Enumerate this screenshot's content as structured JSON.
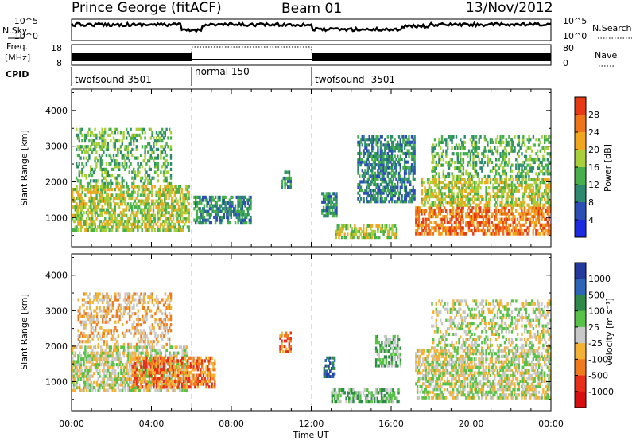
{
  "header": {
    "station": "Prince George (fitACF)",
    "beam": "Beam 01",
    "date": "13/Nov/2012"
  },
  "strips": {
    "nsky_label": "N.Sky",
    "nsky_ticks": [
      "10^5",
      "10^0"
    ],
    "nsearch_label": "N.Search",
    "nsearch_ticks": [
      "10^5",
      "10^0"
    ],
    "freq_label_1": "Freq.",
    "freq_label_2": "[MHz]",
    "freq_ticks": [
      "18",
      "8"
    ],
    "nave_label": "Nave",
    "nave_ticks": [
      "80",
      "0"
    ],
    "cpid_label": "CPID",
    "cpid_segments": [
      {
        "label": "twofsound 3501",
        "start": 0,
        "end": 6
      },
      {
        "label": "normal 150",
        "start": 6,
        "end": 12
      },
      {
        "label": "twofsound -3501",
        "start": 12,
        "end": 24
      }
    ]
  },
  "chart_data": [
    {
      "type": "heatmap",
      "name": "power",
      "ylabel": "Slant Range [km]",
      "ylim": [
        180,
        4600
      ],
      "yticks": [
        "1000",
        "2000",
        "3000",
        "4000"
      ],
      "xlim": [
        0,
        24
      ],
      "colorbar_label": "Power [dB]",
      "colorbar_ticks": [
        "4",
        "8",
        "12",
        "16",
        "20",
        "24",
        "28"
      ],
      "colors": [
        "#1c2be0",
        "#2b4fb5",
        "#2e8a6f",
        "#48b04a",
        "#a9cf3a",
        "#f0a71e",
        "#f0741a",
        "#e63a14"
      ],
      "regions": [
        {
          "t0": 0.0,
          "t1": 5.9,
          "r0": 600,
          "r1": 1900,
          "level": 4
        },
        {
          "t0": 0.2,
          "t1": 5.0,
          "r0": 1900,
          "r1": 3500,
          "level": 3
        },
        {
          "t0": 6.1,
          "t1": 9.0,
          "r0": 800,
          "r1": 1600,
          "level": 2
        },
        {
          "t0": 10.5,
          "t1": 11.0,
          "r0": 1800,
          "r1": 2300,
          "level": 2
        },
        {
          "t0": 12.5,
          "t1": 13.3,
          "r0": 1000,
          "r1": 1700,
          "level": 2
        },
        {
          "t0": 13.2,
          "t1": 16.3,
          "r0": 400,
          "r1": 800,
          "level": 4
        },
        {
          "t0": 14.3,
          "t1": 17.2,
          "r0": 1400,
          "r1": 3300,
          "level": 2
        },
        {
          "t0": 17.2,
          "t1": 24.0,
          "r0": 500,
          "r1": 1300,
          "level": 6
        },
        {
          "t0": 17.5,
          "t1": 24.0,
          "r0": 1300,
          "r1": 2100,
          "level": 4
        },
        {
          "t0": 18.0,
          "t1": 24.0,
          "r0": 2100,
          "r1": 3300,
          "level": 3
        }
      ]
    },
    {
      "type": "heatmap",
      "name": "velocity",
      "ylabel": "Slant Range [km]",
      "ylim": [
        180,
        4600
      ],
      "yticks": [
        "1000",
        "2000",
        "3000",
        "4000"
      ],
      "xlim": [
        0,
        24
      ],
      "xticks": [
        "00:00",
        "04:00",
        "08:00",
        "12:00",
        "16:00",
        "20:00",
        "00:00"
      ],
      "xlabel": "Time UT",
      "colorbar_label": "Velocity [m s⁻¹]",
      "colorbar_ticks": [
        "1000",
        "500",
        "100",
        "25",
        "-25",
        "-100",
        "-500",
        "-1000"
      ],
      "colors": [
        "#243a9c",
        "#2c64b8",
        "#2f8a4a",
        "#57c247",
        "#c8c8c8",
        "#f3b135",
        "#f07a1e",
        "#e7301a",
        "#d80f10"
      ],
      "regions": [
        {
          "t0": 0.0,
          "t1": 5.8,
          "r0": 700,
          "r1": 2000,
          "level": 4
        },
        {
          "t0": 3.0,
          "t1": 7.2,
          "r0": 800,
          "r1": 1700,
          "level": 6
        },
        {
          "t0": 0.3,
          "t1": 5.0,
          "r0": 2000,
          "r1": 3500,
          "level": 5
        },
        {
          "t0": 10.4,
          "t1": 11.0,
          "r0": 1800,
          "r1": 2400,
          "level": 6
        },
        {
          "t0": 12.6,
          "t1": 13.2,
          "r0": 1100,
          "r1": 1700,
          "level": 1
        },
        {
          "t0": 13.0,
          "t1": 16.4,
          "r0": 400,
          "r1": 800,
          "level": 3
        },
        {
          "t0": 15.2,
          "t1": 16.5,
          "r0": 1400,
          "r1": 2300,
          "level": 3
        },
        {
          "t0": 17.2,
          "t1": 24.0,
          "r0": 500,
          "r1": 1900,
          "level": 4
        },
        {
          "t0": 18.0,
          "t1": 24.0,
          "r0": 1900,
          "r1": 3300,
          "level": 4
        }
      ]
    }
  ]
}
